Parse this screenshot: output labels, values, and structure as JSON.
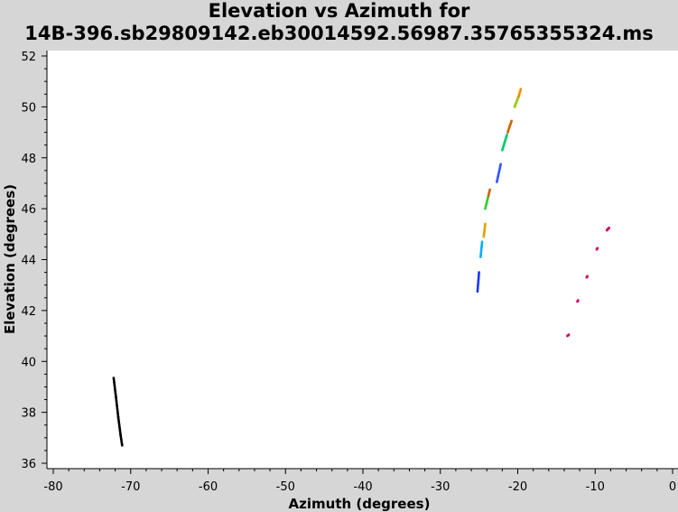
{
  "chart_data": {
    "type": "scatter",
    "title_line1": "Elevation vs Azimuth for",
    "title_line2": "14B-396.sb29809142.eb30014592.56987.35765355324.ms",
    "xlabel": "Azimuth (degrees)",
    "ylabel": "Elevation (degrees)",
    "xlim": [
      -80,
      0
    ],
    "ylim": [
      36,
      52
    ],
    "x_ticks": [
      -80,
      -70,
      -60,
      -50,
      -40,
      -30,
      -20,
      -10,
      0
    ],
    "y_ticks": [
      36,
      38,
      40,
      42,
      44,
      46,
      48,
      50,
      52
    ],
    "grid": false,
    "legend": "none",
    "series": [
      {
        "color": "#000000",
        "points": [
          [
            -72.2,
            39.35
          ],
          [
            -71.9,
            38.6
          ],
          [
            -71.6,
            37.8
          ],
          [
            -71.3,
            37.1
          ],
          [
            -71.1,
            36.7
          ]
        ]
      },
      {
        "color": "#1a33ff",
        "points": [
          [
            -25.2,
            42.75
          ],
          [
            -25.0,
            43.5
          ]
        ]
      },
      {
        "color": "#00b0ff",
        "points": [
          [
            -24.8,
            44.1
          ],
          [
            -24.6,
            44.7
          ]
        ]
      },
      {
        "color": "#e0a000",
        "points": [
          [
            -24.4,
            44.9
          ],
          [
            -24.2,
            45.4
          ]
        ]
      },
      {
        "color": "#33cc33",
        "points": [
          [
            -24.2,
            46.0
          ],
          [
            -23.8,
            46.5
          ]
        ]
      },
      {
        "color": "#cc6600",
        "points": [
          [
            -23.8,
            46.5
          ],
          [
            -23.6,
            46.75
          ]
        ]
      },
      {
        "color": "#3355ff",
        "points": [
          [
            -22.7,
            47.05
          ],
          [
            -22.2,
            47.75
          ]
        ]
      },
      {
        "color": "#00cc66",
        "points": [
          [
            -22.0,
            48.3
          ],
          [
            -21.4,
            48.9
          ]
        ]
      },
      {
        "color": "#cc6600",
        "points": [
          [
            -21.3,
            49.0
          ],
          [
            -20.8,
            49.45
          ]
        ]
      },
      {
        "color": "#99cc00",
        "points": [
          [
            -20.4,
            50.0
          ],
          [
            -19.9,
            50.4
          ]
        ]
      },
      {
        "color": "#ff8800",
        "points": [
          [
            -19.9,
            50.4
          ],
          [
            -19.6,
            50.7
          ]
        ]
      },
      {
        "color": "#cc0066",
        "points": [
          [
            -13.6,
            41.0
          ],
          [
            -13.4,
            41.05
          ]
        ]
      },
      {
        "color": "#cc0066",
        "points": [
          [
            -12.3,
            42.35
          ],
          [
            -12.2,
            42.4
          ]
        ]
      },
      {
        "color": "#cc0066",
        "points": [
          [
            -11.1,
            43.3
          ],
          [
            -11.0,
            43.35
          ]
        ]
      },
      {
        "color": "#cc0066",
        "points": [
          [
            -9.8,
            44.4
          ],
          [
            -9.7,
            44.45
          ]
        ]
      },
      {
        "color": "#cc0066",
        "points": [
          [
            -8.5,
            45.15
          ],
          [
            -8.2,
            45.25
          ]
        ]
      }
    ]
  }
}
